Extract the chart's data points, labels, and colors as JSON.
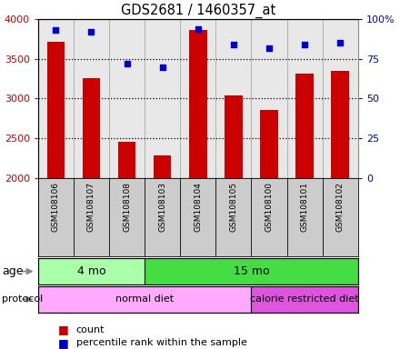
{
  "title": "GDS2681 / 1460357_at",
  "samples": [
    "GSM108106",
    "GSM108107",
    "GSM108108",
    "GSM108103",
    "GSM108104",
    "GSM108105",
    "GSM108100",
    "GSM108101",
    "GSM108102"
  ],
  "counts": [
    3720,
    3260,
    2460,
    2290,
    3860,
    3040,
    2855,
    3310,
    3350
  ],
  "percentile_ranks": [
    93,
    92,
    72,
    70,
    94,
    84,
    82,
    84,
    85
  ],
  "ylim_left": [
    2000,
    4000
  ],
  "ylim_right": [
    0,
    100
  ],
  "yticks_left": [
    2000,
    2500,
    3000,
    3500,
    4000
  ],
  "yticks_right": [
    0,
    25,
    50,
    75,
    100
  ],
  "bar_color": "#cc0000",
  "dot_color": "#0000cc",
  "age_groups": [
    {
      "label": "4 mo",
      "start": 0,
      "end": 3,
      "color": "#aaffaa"
    },
    {
      "label": "15 mo",
      "start": 3,
      "end": 9,
      "color": "#44dd44"
    }
  ],
  "protocol_groups": [
    {
      "label": "normal diet",
      "start": 0,
      "end": 6,
      "color": "#ffaaff"
    },
    {
      "label": "calorie restricted diet",
      "start": 6,
      "end": 9,
      "color": "#dd55dd"
    }
  ],
  "label_bg_color": "#cccccc",
  "background_color": "#ffffff",
  "tick_label_color_left": "#cc0000",
  "tick_label_color_right": "#0000cc",
  "grid_dotted_values": [
    2500,
    3000,
    3500
  ],
  "legend_items": [
    {
      "color": "#cc0000",
      "label": "count"
    },
    {
      "color": "#0000cc",
      "label": "percentile rank within the sample"
    }
  ]
}
